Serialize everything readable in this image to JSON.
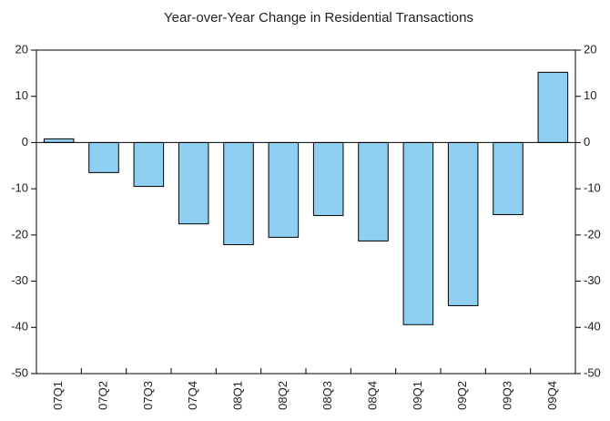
{
  "chart_data": {
    "type": "bar",
    "title": "Year-over-Year Change in Residential Transactions",
    "categories": [
      "07Q1",
      "07Q2",
      "07Q3",
      "07Q4",
      "08Q1",
      "08Q2",
      "08Q3",
      "08Q4",
      "09Q1",
      "09Q2",
      "09Q3",
      "09Q4"
    ],
    "values": [
      0.8,
      -6.5,
      -9.5,
      -17.6,
      -22.1,
      -20.5,
      -15.8,
      -21.3,
      -39.4,
      -35.3,
      -15.6,
      15.2
    ],
    "color": "#8ecff2",
    "ylim": [
      -50,
      20
    ],
    "yticks": [
      -50,
      -40,
      -30,
      -20,
      -10,
      0,
      10,
      20
    ]
  }
}
